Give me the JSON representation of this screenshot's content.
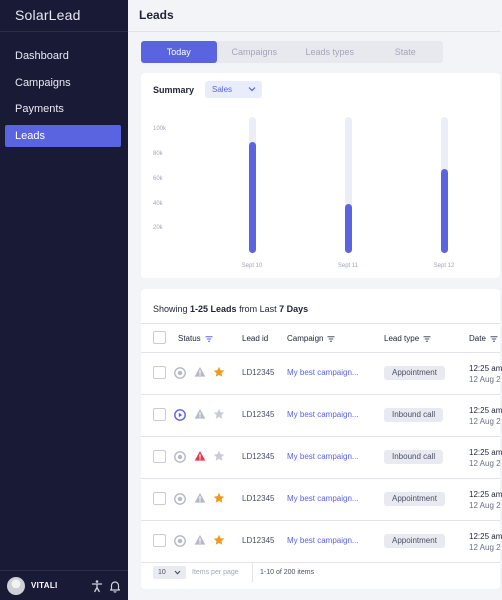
{
  "sidebar": {
    "brand": "SolarLead",
    "items": [
      {
        "label": "Dashboard",
        "active": false
      },
      {
        "label": "Campaigns",
        "active": false
      },
      {
        "label": "Payments",
        "active": false
      },
      {
        "label": "Leads",
        "active": true
      }
    ],
    "user": {
      "name": "VITALI",
      "icons": [
        "accessibility-icon",
        "bell-icon"
      ]
    }
  },
  "header": {
    "title": "Leads"
  },
  "tabs": [
    {
      "label": "Today",
      "active": true
    },
    {
      "label": "Campaigns",
      "active": false
    },
    {
      "label": "Leads types",
      "active": false
    },
    {
      "label": "State",
      "active": false
    }
  ],
  "summary": {
    "title": "Summary",
    "filter": "Sales",
    "chart_data": {
      "type": "bar",
      "categories": [
        "Sept 10",
        "Sept 11",
        "Sept 12"
      ],
      "values": [
        90000,
        40000,
        68000
      ],
      "yticks": [
        "100k",
        "80k",
        "60k",
        "40k",
        "20k"
      ],
      "ylim": [
        0,
        110000
      ],
      "track_max": 110000,
      "bar_color": "#5a63e0",
      "track_color": "#eceef3",
      "grid": false
    }
  },
  "leads": {
    "showing_prefix": "Showing ",
    "showing_range": "1-25 Leads",
    "showing_mid": " from Last ",
    "showing_period": "7 Days",
    "columns": {
      "status": "Status",
      "lead_id": "Lead id",
      "campaign": "Campaign",
      "lead_type": "Lead type",
      "date": "Date"
    },
    "rows": [
      {
        "status": "play-muted",
        "warning": "gray",
        "star": "filled",
        "lead_id": "LD12345",
        "campaign": "My best campaign...",
        "lead_type": "Appointment",
        "date": "12:25 am",
        "date2": "12 Aug 2"
      },
      {
        "status": "play-active",
        "warning": "gray",
        "star": "empty",
        "lead_id": "LD12345",
        "campaign": "My best campaign...",
        "lead_type": "Inbound call",
        "date": "12:25 am",
        "date2": "12 Aug 2"
      },
      {
        "status": "play-muted",
        "warning": "red",
        "star": "empty",
        "lead_id": "LD12345",
        "campaign": "My best campaign...",
        "lead_type": "Inbound call",
        "date": "12:25 am",
        "date2": "12 Aug 2"
      },
      {
        "status": "play-muted",
        "warning": "gray",
        "star": "filled",
        "lead_id": "LD12345",
        "campaign": "My best campaign...",
        "lead_type": "Appointment",
        "date": "12:25 am",
        "date2": "12 Aug 2"
      },
      {
        "status": "play-muted",
        "warning": "gray",
        "star": "filled",
        "lead_id": "LD12345",
        "campaign": "My best campaign...",
        "lead_type": "Appointment",
        "date": "12:25 am",
        "date2": "12 Aug 2"
      }
    ],
    "pager": {
      "per_page": "10",
      "per_page_label": "Items per page",
      "count": "1-10 of 200 items"
    }
  },
  "colors": {
    "sidebar_bg": "#181a36",
    "accent": "#5a63e0",
    "warning_red": "#e53950",
    "star_orange": "#f29a1f",
    "muted_gray": "#b7bac6"
  }
}
